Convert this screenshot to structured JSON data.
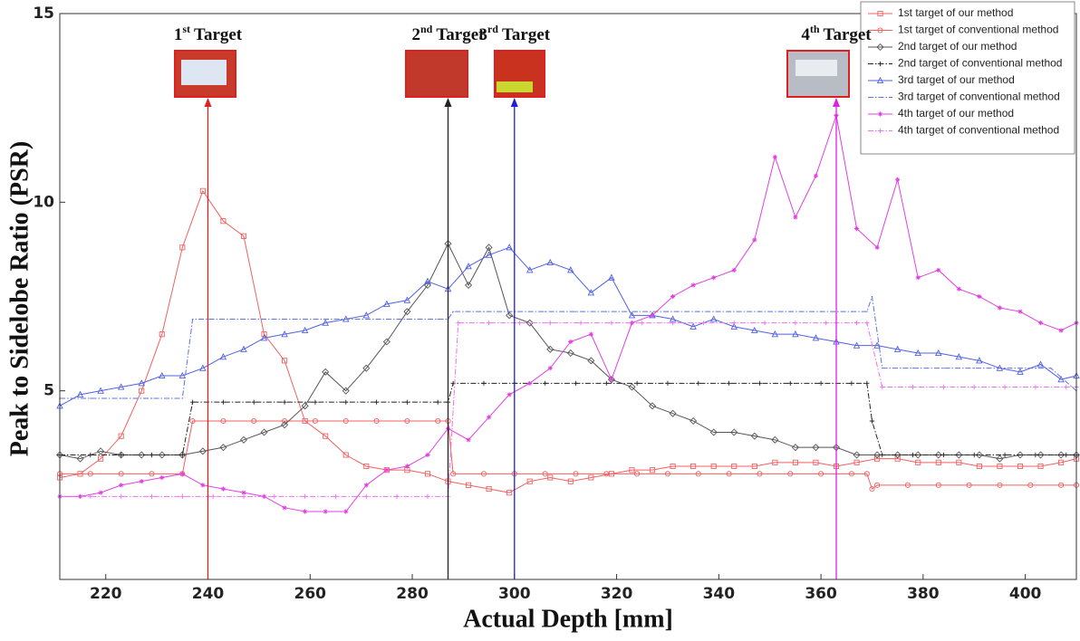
{
  "chart_data": {
    "type": "line",
    "xlabel": "Actual Depth [mm]",
    "ylabel": "Peak to Sidelobe Ratio (PSR)",
    "xlim": [
      211,
      410
    ],
    "ylim": [
      0,
      15
    ],
    "xticks": [
      220,
      240,
      260,
      280,
      300,
      320,
      340,
      360,
      380,
      400
    ],
    "yticks": [
      5,
      10,
      15
    ],
    "legend": "upper right",
    "annotations": [
      {
        "x": 240,
        "number": "1",
        "suffix": "st",
        "label": "Target",
        "color": "#e02020"
      },
      {
        "x": 287,
        "number": "2",
        "suffix": "nd",
        "label": "Target",
        "color": "#222222"
      },
      {
        "x": 300,
        "number": "3",
        "suffix": "rd",
        "label": "Target",
        "color": "#2020d0"
      },
      {
        "x": 363,
        "number": "4",
        "suffix": "th",
        "label": "Target",
        "color": "#e020e0"
      }
    ],
    "series": [
      {
        "name": "1st target of our method",
        "color": "#f06060",
        "marker": "square",
        "dash": "solid",
        "x": [
          211,
          215,
          219,
          223,
          227,
          231,
          235,
          239,
          243,
          247,
          251,
          255,
          259,
          263,
          267,
          271,
          275,
          279,
          283,
          287,
          291,
          295,
          299,
          303,
          307,
          311,
          315,
          319,
          323,
          327,
          331,
          335,
          339,
          343,
          347,
          351,
          355,
          359,
          363,
          367,
          371,
          375,
          379,
          383,
          387,
          391,
          395,
          399,
          403,
          407,
          410
        ],
        "values": [
          2.7,
          2.8,
          3.2,
          3.8,
          5.0,
          6.5,
          8.8,
          10.3,
          9.5,
          9.1,
          6.5,
          5.8,
          4.2,
          3.8,
          3.3,
          3.0,
          2.9,
          2.9,
          2.8,
          2.6,
          2.5,
          2.4,
          2.3,
          2.6,
          2.7,
          2.6,
          2.7,
          2.8,
          2.9,
          2.9,
          3.0,
          3.0,
          3.0,
          3.0,
          3.0,
          3.1,
          3.1,
          3.1,
          3.0,
          3.1,
          3.2,
          3.2,
          3.1,
          3.1,
          3.1,
          3.0,
          3.0,
          3.0,
          3.0,
          3.1,
          3.2
        ]
      },
      {
        "name": "1st target of conventional method",
        "color": "#f06060",
        "marker": "circle",
        "dash": "solid",
        "x": [
          211,
          217,
          223,
          229,
          235,
          237,
          243,
          249,
          255,
          261,
          267,
          273,
          279,
          285,
          287,
          288,
          294,
          300,
          306,
          312,
          318,
          324,
          330,
          336,
          342,
          348,
          354,
          360,
          366,
          369,
          370,
          371,
          377,
          383,
          389,
          395,
          401,
          407,
          410
        ],
        "values": [
          2.8,
          2.8,
          2.8,
          2.8,
          2.8,
          4.2,
          4.2,
          4.2,
          4.2,
          4.2,
          4.2,
          4.2,
          4.2,
          4.2,
          4.2,
          2.8,
          2.8,
          2.8,
          2.8,
          2.8,
          2.8,
          2.8,
          2.8,
          2.8,
          2.8,
          2.8,
          2.8,
          2.8,
          2.8,
          2.8,
          2.4,
          2.5,
          2.5,
          2.5,
          2.5,
          2.5,
          2.5,
          2.5,
          2.5
        ]
      },
      {
        "name": "2nd target of our method",
        "color": "#555555",
        "marker": "diamond",
        "dash": "solid",
        "x": [
          211,
          215,
          219,
          223,
          227,
          231,
          235,
          239,
          243,
          247,
          251,
          255,
          259,
          263,
          267,
          271,
          275,
          279,
          283,
          287,
          291,
          295,
          299,
          303,
          307,
          311,
          315,
          319,
          323,
          327,
          331,
          335,
          339,
          343,
          347,
          351,
          355,
          359,
          363,
          367,
          371,
          375,
          379,
          383,
          387,
          391,
          395,
          399,
          403,
          407,
          410
        ],
        "values": [
          3.3,
          3.2,
          3.4,
          3.3,
          3.3,
          3.3,
          3.3,
          3.4,
          3.5,
          3.7,
          3.9,
          4.1,
          4.6,
          5.5,
          5.0,
          5.6,
          6.3,
          7.1,
          7.8,
          8.9,
          7.8,
          8.8,
          7.0,
          6.8,
          6.1,
          6.0,
          5.8,
          5.3,
          5.1,
          4.6,
          4.4,
          4.2,
          3.9,
          3.9,
          3.8,
          3.7,
          3.5,
          3.5,
          3.5,
          3.3,
          3.3,
          3.3,
          3.3,
          3.3,
          3.3,
          3.3,
          3.2,
          3.3,
          3.3,
          3.3,
          3.3
        ]
      },
      {
        "name": "2nd target of conventional method",
        "color": "#222222",
        "marker": "plus",
        "dash": "dashdot",
        "x": [
          211,
          217,
          223,
          229,
          235,
          237,
          243,
          249,
          255,
          261,
          267,
          273,
          279,
          285,
          287,
          288,
          294,
          300,
          306,
          312,
          318,
          324,
          330,
          336,
          342,
          348,
          354,
          360,
          366,
          369,
          370,
          372,
          378,
          384,
          390,
          396,
          402,
          408,
          410
        ],
        "values": [
          3.3,
          3.3,
          3.3,
          3.3,
          3.3,
          4.7,
          4.7,
          4.7,
          4.7,
          4.7,
          4.7,
          4.7,
          4.7,
          4.7,
          4.7,
          5.2,
          5.2,
          5.2,
          5.2,
          5.2,
          5.2,
          5.2,
          5.2,
          5.2,
          5.2,
          5.2,
          5.2,
          5.2,
          5.2,
          5.2,
          4.2,
          3.3,
          3.3,
          3.3,
          3.3,
          3.3,
          3.3,
          3.3,
          3.3
        ]
      },
      {
        "name": "3rd target of our method",
        "color": "#5060e0",
        "marker": "triangle",
        "dash": "solid",
        "x": [
          211,
          215,
          219,
          223,
          227,
          231,
          235,
          239,
          243,
          247,
          251,
          255,
          259,
          263,
          267,
          271,
          275,
          279,
          283,
          287,
          291,
          295,
          299,
          303,
          307,
          311,
          315,
          319,
          323,
          327,
          331,
          335,
          339,
          343,
          347,
          351,
          355,
          359,
          363,
          367,
          371,
          375,
          379,
          383,
          387,
          391,
          395,
          399,
          403,
          407,
          410
        ],
        "values": [
          4.6,
          4.9,
          5.0,
          5.1,
          5.2,
          5.4,
          5.4,
          5.6,
          5.9,
          6.1,
          6.4,
          6.5,
          6.6,
          6.8,
          6.9,
          7.0,
          7.3,
          7.4,
          7.9,
          7.7,
          8.3,
          8.6,
          8.8,
          8.2,
          8.4,
          8.2,
          7.6,
          8.0,
          7.0,
          7.0,
          6.9,
          6.7,
          6.9,
          6.7,
          6.6,
          6.5,
          6.5,
          6.4,
          6.3,
          6.2,
          6.2,
          6.1,
          6.0,
          6.0,
          5.9,
          5.8,
          5.6,
          5.5,
          5.7,
          5.3,
          5.4
        ]
      },
      {
        "name": "3rd target of conventional method",
        "color": "#6070e8",
        "marker": "point",
        "dash": "dashdot",
        "x": [
          211,
          217,
          223,
          229,
          235,
          237,
          243,
          249,
          255,
          261,
          267,
          273,
          279,
          285,
          287,
          288,
          294,
          300,
          306,
          312,
          318,
          324,
          330,
          336,
          342,
          348,
          354,
          360,
          366,
          369,
          370,
          372,
          378,
          384,
          390,
          396,
          402,
          405,
          410
        ],
        "values": [
          4.8,
          4.8,
          4.8,
          4.8,
          4.8,
          6.9,
          6.9,
          6.9,
          6.9,
          6.9,
          6.9,
          6.9,
          6.9,
          6.9,
          6.9,
          7.1,
          7.1,
          7.1,
          7.1,
          7.1,
          7.1,
          7.1,
          7.1,
          7.1,
          7.1,
          7.1,
          7.1,
          7.1,
          7.1,
          7.1,
          7.5,
          5.6,
          5.6,
          5.6,
          5.6,
          5.6,
          5.6,
          5.6,
          5.0
        ]
      },
      {
        "name": "4th target of our method",
        "color": "#e040e0",
        "marker": "star",
        "dash": "solid",
        "x": [
          211,
          215,
          219,
          223,
          227,
          231,
          235,
          239,
          243,
          247,
          251,
          255,
          259,
          263,
          267,
          271,
          275,
          279,
          283,
          287,
          291,
          295,
          299,
          303,
          307,
          311,
          315,
          319,
          323,
          327,
          331,
          335,
          339,
          343,
          347,
          351,
          355,
          359,
          363,
          367,
          371,
          375,
          379,
          383,
          387,
          391,
          395,
          399,
          403,
          407,
          410
        ],
        "values": [
          2.2,
          2.2,
          2.3,
          2.5,
          2.6,
          2.7,
          2.8,
          2.5,
          2.4,
          2.3,
          2.2,
          1.9,
          1.8,
          1.8,
          1.8,
          2.5,
          2.9,
          3.0,
          3.3,
          4.0,
          3.7,
          4.3,
          4.9,
          5.2,
          5.6,
          6.3,
          6.5,
          5.3,
          6.8,
          7.0,
          7.5,
          7.8,
          8.0,
          8.2,
          9.0,
          11.2,
          9.6,
          10.7,
          12.3,
          9.3,
          8.8,
          10.6,
          8.0,
          8.2,
          7.7,
          7.5,
          7.2,
          7.1,
          6.8,
          6.6,
          6.8
        ]
      },
      {
        "name": "4th target of conventional method",
        "color": "#f070f0",
        "marker": "plus",
        "dash": "dashdot",
        "x": [
          211,
          217,
          223,
          229,
          235,
          241,
          247,
          253,
          259,
          265,
          271,
          277,
          283,
          287,
          289,
          295,
          301,
          307,
          313,
          319,
          325,
          331,
          337,
          343,
          349,
          355,
          361,
          367,
          369,
          372,
          378,
          384,
          390,
          396,
          402,
          408,
          410
        ],
        "values": [
          2.2,
          2.2,
          2.2,
          2.2,
          2.2,
          2.2,
          2.2,
          2.2,
          2.2,
          2.2,
          2.2,
          2.2,
          2.2,
          2.2,
          6.8,
          6.8,
          6.8,
          6.8,
          6.8,
          6.8,
          6.8,
          6.8,
          6.8,
          6.8,
          6.8,
          6.8,
          6.8,
          6.8,
          6.8,
          5.1,
          5.1,
          5.1,
          5.1,
          5.1,
          5.1,
          5.1,
          5.1
        ]
      }
    ]
  }
}
